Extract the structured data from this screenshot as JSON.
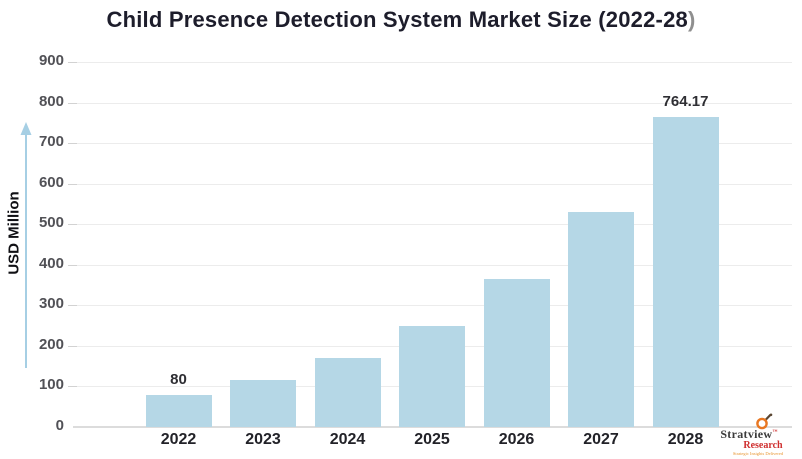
{
  "title": {
    "main": "Child Presence Detection System Market Size (2022-28",
    "closing_paren": ")"
  },
  "y_axis": {
    "label": "USD Million",
    "ticks": [
      "900",
      "800",
      "700",
      "600",
      "500",
      "400",
      "300",
      "200",
      "100",
      "0"
    ]
  },
  "chart_data": {
    "type": "bar",
    "title": "Child Presence Detection System Market Size (2022-28)",
    "categories": [
      "2022",
      "2023",
      "2024",
      "2025",
      "2026",
      "2027",
      "2028"
    ],
    "values": [
      80,
      116,
      170,
      250,
      365,
      530,
      764.17
    ],
    "data_labels": {
      "2022": "80",
      "2028": "764.17"
    },
    "xlabel": "",
    "ylabel": "USD Million",
    "ylim": [
      0,
      900
    ],
    "ytick_interval": 100,
    "grid": "horizontal",
    "legend": "none",
    "bar_color": "#b5d7e6"
  },
  "colors": {
    "background": "#ffffff",
    "title_text": "#1d1d2b",
    "title_paren": "#8f8f8f",
    "bar": "#b5d7e6",
    "gridline": "#ececec",
    "axis_line": "#dcdcdc",
    "y_tick_text": "#515156",
    "x_tick_text": "#222228",
    "data_label_text": "#2e2e33",
    "axis_arrow": "#a6cfe4",
    "logo_orange": "#e87722",
    "logo_red": "#cf2e2e",
    "logo_dark": "#3b3b3b"
  },
  "logo": {
    "brand": "Stratview",
    "trademark": "™",
    "sub_brand": "Research",
    "tagline": "Strategic Insights Delivered"
  }
}
